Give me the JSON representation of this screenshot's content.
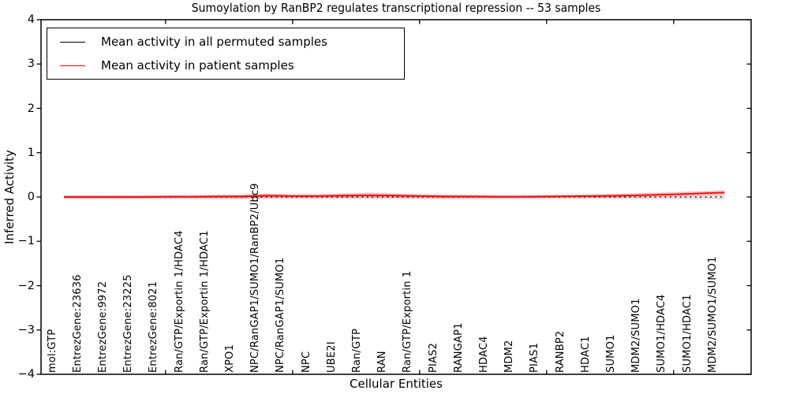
{
  "chart_data": {
    "type": "line",
    "title": "Sumoylation by RanBP2 regulates transcriptional repression -- 53 samples",
    "xlabel": "Cellular Entities",
    "ylabel": "Inferred Activity",
    "ylim": [
      -4,
      4
    ],
    "yticks": [
      -4,
      -3,
      -2,
      -1,
      0,
      1,
      2,
      3,
      4
    ],
    "x_major_tick_indices": [
      4,
      9,
      14,
      19,
      24
    ],
    "grid": false,
    "legend_position": "upper left",
    "categories": [
      "mol:GTP",
      "EntrezGene:23636",
      "EntrezGene:9972",
      "EntrezGene:23225",
      "EntrezGene:8021",
      "Ran/GTP/Exportin 1/HDAC4",
      "Ran/GTP/Exportin 1/HDAC1",
      "XPO1",
      "NPC/RanGAP1/SUMO1/RanBP2/Ubc9",
      "NPC/RanGAP1/SUMO1",
      "NPC",
      "UBE2I",
      "Ran/GTP",
      "RAN",
      "Ran/GTP/Exportin 1",
      "PIAS2",
      "RANGAP1",
      "HDAC4",
      "MDM2",
      "PIAS1",
      "RANBP2",
      "HDAC1",
      "SUMO1",
      "MDM2/SUMO1",
      "SUMO1/HDAC4",
      "SUMO1/HDAC1",
      "MDM2/SUMO1/SUMO1"
    ],
    "series": [
      {
        "name": "Mean activity in all permuted samples",
        "color": "#000000",
        "line_style": "dotted",
        "values": [
          0,
          0,
          0,
          0,
          0,
          0,
          0,
          0,
          0,
          0,
          0,
          0,
          0,
          0,
          0,
          0,
          0,
          0,
          0,
          0,
          0,
          0,
          0,
          0,
          0,
          0,
          0
        ],
        "band": {
          "halfwidth": 0.05,
          "color": "rgba(128,128,128,0.22)"
        }
      },
      {
        "name": "Mean activity in patient samples",
        "color": "#ff0000",
        "line_style": "solid",
        "values": [
          0.0,
          0.0,
          0.0,
          0.0,
          0.005,
          0.005,
          0.01,
          0.01,
          0.03,
          0.02,
          0.02,
          0.03,
          0.04,
          0.03,
          0.02,
          0.01,
          0.01,
          0.005,
          0.005,
          0.01,
          0.015,
          0.02,
          0.03,
          0.045,
          0.06,
          0.08,
          0.1
        ],
        "band": {
          "halfwidth": [
            0.03,
            0.03,
            0.03,
            0.03,
            0.03,
            0.03,
            0.035,
            0.04,
            0.05,
            0.04,
            0.04,
            0.05,
            0.06,
            0.05,
            0.045,
            0.04,
            0.035,
            0.03,
            0.03,
            0.03,
            0.035,
            0.04,
            0.045,
            0.05,
            0.05,
            0.05,
            0.05
          ],
          "color": "rgba(255,0,0,0.25)"
        }
      }
    ]
  }
}
